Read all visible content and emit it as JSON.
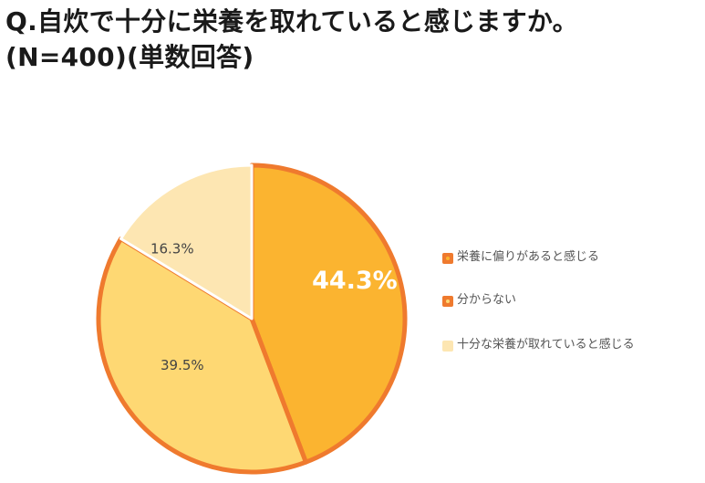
{
  "title": {
    "line1": "Q.自炊で十分に栄養を取れていると感じますか。",
    "line2": "(N=400)(単数回答)"
  },
  "chart_data": {
    "type": "pie",
    "series": [
      {
        "values": [
          44.3,
          39.5,
          16.3
        ],
        "data_labels": [
          "44.3%",
          "39.5%",
          "16.3%"
        ]
      }
    ],
    "categories": [
      "栄養に偏りがあると感じる",
      "分からない",
      "十分な栄養が取れていると感じる"
    ],
    "start_angle_deg": 0,
    "direction": "clockwise",
    "legend_position": "right",
    "colors": {
      "slice_fills": [
        "#fbb430",
        "#fed873",
        "#fde6b2"
      ],
      "slice_outlines": [
        "#ef7a2e",
        "#ef7a2e",
        "#ffffff"
      ],
      "label_colors": [
        "#ffffff",
        "#444444",
        "#444444"
      ],
      "legend_swatch_fills": [
        "#ef7a2e",
        "#ef7a2e",
        "#fde6b2"
      ],
      "legend_swatch_dots": [
        "#fbb430",
        "#fed873",
        "#fde6b2"
      ]
    }
  }
}
